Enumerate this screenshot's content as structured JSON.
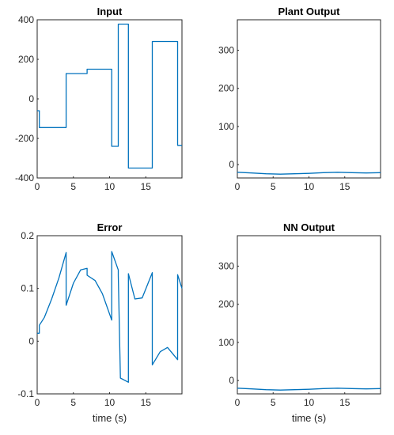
{
  "chart_data": [
    {
      "type": "line",
      "title": "Input",
      "xlabel": "",
      "ylabel": "",
      "xlim": [
        0,
        20
      ],
      "ylim": [
        -400,
        400
      ],
      "xticks": [
        0,
        5,
        10,
        15
      ],
      "xtick_labels": [
        "0",
        "5",
        "10",
        "15"
      ],
      "yticks": [
        -400,
        -200,
        0,
        200,
        400
      ],
      "ytick_labels": [
        "-400",
        "-200",
        "0",
        "200",
        "400"
      ],
      "grid": false,
      "legend": "none",
      "line_color": "#0072BD",
      "series": [
        {
          "x": [
            0,
            0.3,
            0.3,
            4.0,
            4.0,
            6.9,
            6.9,
            10.3,
            10.3,
            11.2,
            11.2,
            12.6,
            12.6,
            15.9,
            15.9,
            19.4,
            19.4,
            20.0
          ],
          "y": [
            -60,
            -60,
            -145,
            -145,
            128,
            128,
            150,
            150,
            -240,
            -240,
            378,
            378,
            -350,
            -350,
            290,
            290,
            -235,
            -235
          ]
        }
      ]
    },
    {
      "type": "line",
      "title": "Plant Output",
      "xlabel": "",
      "ylabel": "",
      "xlim": [
        0,
        20
      ],
      "ylim": [
        -35,
        380
      ],
      "xticks": [
        0,
        5,
        10,
        15
      ],
      "xtick_labels": [
        "0",
        "5",
        "10",
        "15"
      ],
      "yticks": [
        0,
        100,
        200,
        300
      ],
      "ytick_labels": [
        "0",
        "100",
        "200",
        "300"
      ],
      "grid": false,
      "legend": "none",
      "line_color": "#0072BD",
      "series": [
        {
          "x": [
            0,
            2,
            4,
            6,
            8,
            10,
            12,
            14,
            16,
            18,
            20
          ],
          "y": [
            -20,
            -22,
            -24,
            -25,
            -24,
            -23,
            -21,
            -20,
            -21,
            -22,
            -21
          ]
        }
      ]
    },
    {
      "type": "line",
      "title": "Error",
      "xlabel": "time (s)",
      "ylabel": "",
      "xlim": [
        0,
        20
      ],
      "ylim": [
        -0.1,
        0.2
      ],
      "xticks": [
        0,
        5,
        10,
        15
      ],
      "xtick_labels": [
        "0",
        "5",
        "10",
        "15"
      ],
      "yticks": [
        -0.1,
        0,
        0.1,
        0.2
      ],
      "ytick_labels": [
        "-0.1",
        "0",
        "0.1",
        "0.2"
      ],
      "grid": false,
      "legend": "none",
      "line_color": "#0072BD",
      "series": [
        {
          "x": [
            0,
            0.3,
            0.3,
            1.0,
            2.0,
            3.0,
            4.0,
            4.0,
            5.0,
            6.0,
            6.9,
            6.9,
            8.0,
            9.0,
            10.3,
            10.3,
            11.2,
            11.2,
            11.5,
            12.6,
            12.6,
            13.5,
            14.5,
            15.9,
            15.9,
            17.0,
            18.0,
            19.4,
            19.4,
            20.0
          ],
          "y": [
            0.015,
            0.015,
            0.03,
            0.045,
            0.08,
            0.12,
            0.168,
            0.068,
            0.11,
            0.135,
            0.138,
            0.125,
            0.115,
            0.09,
            0.04,
            0.17,
            0.135,
            0.125,
            -0.07,
            -0.078,
            0.128,
            0.08,
            0.082,
            0.13,
            -0.045,
            -0.02,
            -0.012,
            -0.035,
            0.126,
            0.1
          ]
        }
      ]
    },
    {
      "type": "line",
      "title": "NN Output",
      "xlabel": "time (s)",
      "ylabel": "",
      "xlim": [
        0,
        20
      ],
      "ylim": [
        -35,
        380
      ],
      "xticks": [
        0,
        5,
        10,
        15
      ],
      "xtick_labels": [
        "0",
        "5",
        "10",
        "15"
      ],
      "yticks": [
        0,
        100,
        200,
        300
      ],
      "ytick_labels": [
        "0",
        "100",
        "200",
        "300"
      ],
      "grid": false,
      "legend": "none",
      "line_color": "#0072BD",
      "series": [
        {
          "x": [
            0,
            2,
            4,
            6,
            8,
            10,
            12,
            14,
            16,
            18,
            20
          ],
          "y": [
            -20,
            -22,
            -24,
            -25,
            -24,
            -23,
            -21,
            -20,
            -21,
            -22,
            -21
          ]
        }
      ]
    }
  ]
}
